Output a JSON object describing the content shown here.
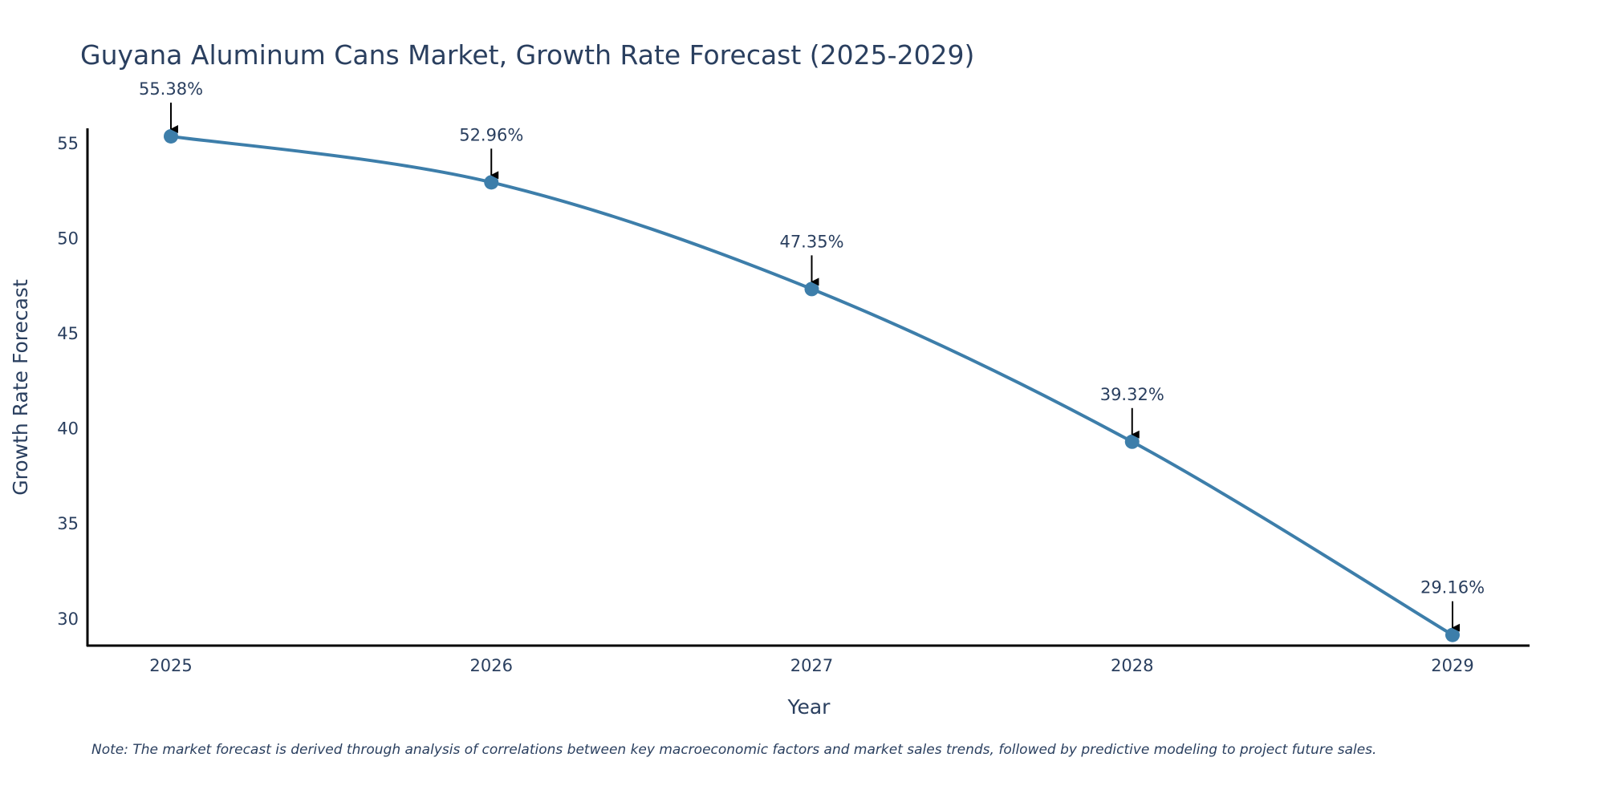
{
  "chart_data": {
    "type": "line",
    "title": "Guyana Aluminum Cans Market, Growth Rate Forecast (2025-2029)",
    "xlabel": "Year",
    "ylabel": "Growth Rate Forecast",
    "categories": [
      "2025",
      "2026",
      "2027",
      "2028",
      "2029"
    ],
    "series": [
      {
        "name": "Growth Rate Forecast",
        "values": [
          55.38,
          52.96,
          47.35,
          39.32,
          29.16
        ],
        "labels": [
          "55.38%",
          "52.96%",
          "47.35%",
          "39.32%",
          "29.16%"
        ],
        "color": "#3d7eaa"
      }
    ],
    "ylim": [
      28.6,
      55.8
    ],
    "yticks": [
      30,
      35,
      40,
      45,
      50,
      55
    ],
    "grid": false,
    "legend": "none",
    "line_shape": "spline",
    "annotation_arrow_color": "#000000"
  },
  "note": "Note: The market forecast is derived through analysis of correlations between key macroeconomic factors and market sales trends, followed by predictive modeling to project future sales.",
  "colors": {
    "text": "#2a3f5f",
    "axis": "#000000",
    "line": "#3d7eaa",
    "background": "#ffffff"
  }
}
